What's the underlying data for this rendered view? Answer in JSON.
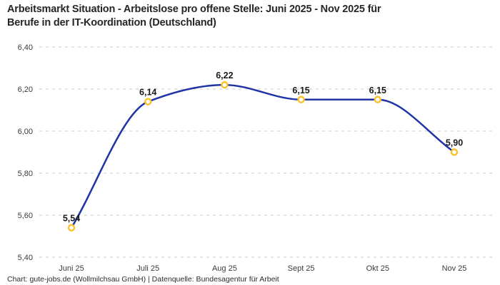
{
  "header": {
    "title_line1": "Arbeitsmarkt Situation - Arbeitslose pro offene Stelle: Juni 2025 - Nov 2025 für",
    "title_line2": "Berufe in der IT-Koordination (Deutschland)"
  },
  "footer": {
    "credit": "Chart: gute-jobs.de (Wollmilchsau GmbH) | Datenquelle: Bundesagentur für Arbeit"
  },
  "chart_data": {
    "type": "line",
    "title": "Arbeitsmarkt Situation - Arbeitslose pro offene Stelle: Juni 2025 - Nov 2025 für Berufe in der IT-Koordination (Deutschland)",
    "categories": [
      "Juni 25",
      "Juli 25",
      "Aug 25",
      "Sept 25",
      "Okt 25",
      "Nov 25"
    ],
    "values": [
      5.54,
      6.14,
      6.22,
      6.15,
      6.15,
      5.9
    ],
    "value_labels": [
      "5,54",
      "6,14",
      "6,22",
      "6,15",
      "6,15",
      "5,90"
    ],
    "y_ticks": [
      "5,40",
      "5,60",
      "5,80",
      "6,00",
      "6,20",
      "6,40"
    ],
    "ylim": [
      5.4,
      6.4
    ],
    "xlabel": "",
    "ylabel": "",
    "grid": "horizontal-dashed",
    "legend": "none",
    "colors": {
      "line": "#2134a6",
      "marker": "#fcc127",
      "marker_fill": "#ffffff",
      "grid": "#c9c9c9",
      "tick_text": "#3a3a3a",
      "data_label": "#191919"
    }
  }
}
